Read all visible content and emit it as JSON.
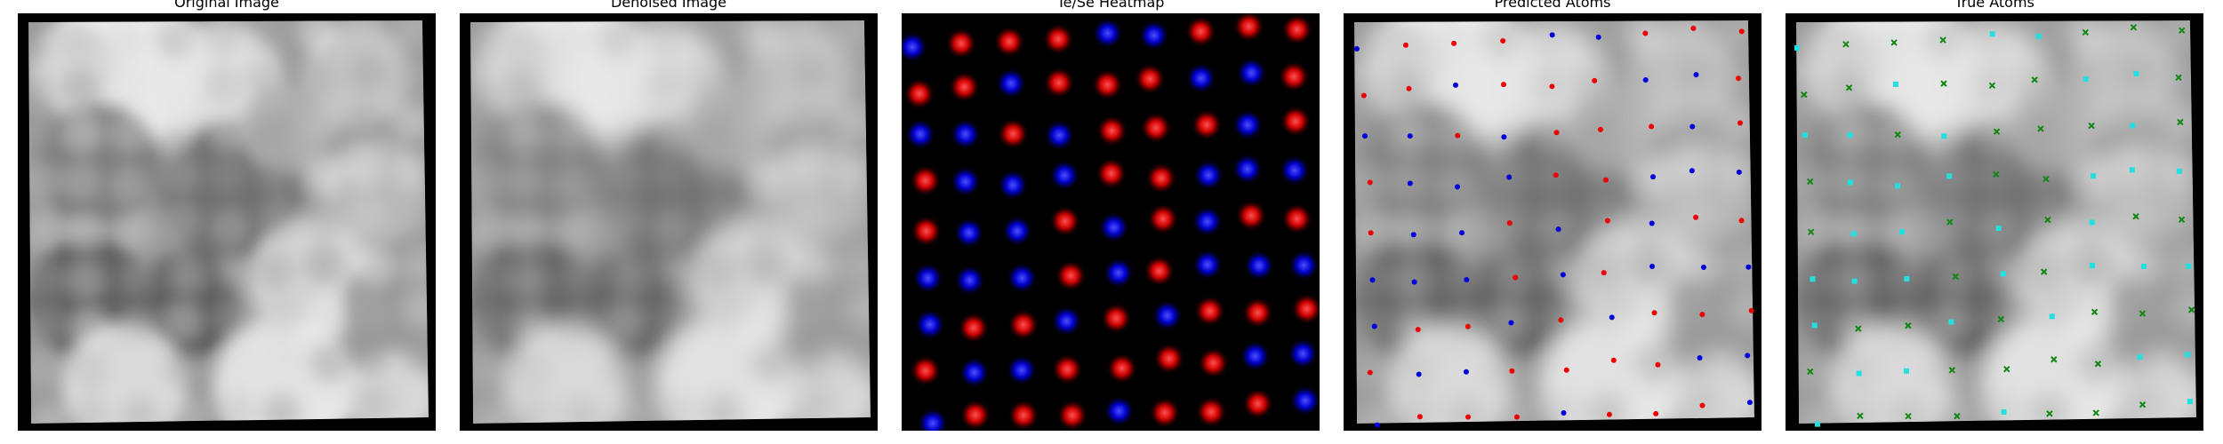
{
  "figure": {
    "panels": [
      {
        "id": "original",
        "title": "Original Image"
      },
      {
        "id": "denoised",
        "title": "Denoised Image"
      },
      {
        "id": "heatmap",
        "title": "Te/Se Heatmap"
      },
      {
        "id": "predicted",
        "title": "Predicted Atoms"
      },
      {
        "id": "true",
        "title": "True Atoms"
      }
    ],
    "colors": {
      "te": "#ff1a1a",
      "se": "#1a1aff",
      "pred_red": "#ee0000",
      "pred_blue": "#0000dd",
      "true_cyan": "#22e0e0",
      "true_green": "#118811",
      "background": "#000000"
    }
  }
}
